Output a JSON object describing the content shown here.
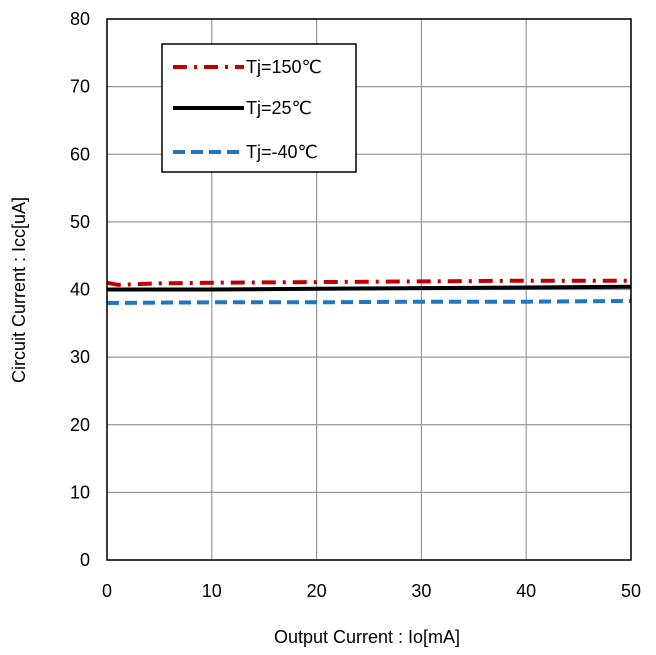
{
  "chart_data": {
    "type": "line",
    "title": "",
    "xlabel": "Output Current : Io[mA]",
    "ylabel": "Circuit Current : Icc[uA]",
    "xlim": [
      0,
      50
    ],
    "ylim": [
      0,
      80
    ],
    "xticks": [
      0,
      10,
      20,
      30,
      40,
      50
    ],
    "yticks": [
      0,
      10,
      20,
      30,
      40,
      50,
      60,
      70,
      80
    ],
    "x_tick_labels": [
      "0",
      "10",
      "20",
      "30",
      "40",
      "50"
    ],
    "y_tick_labels": [
      "0",
      "10",
      "20",
      "30",
      "40",
      "50",
      "60",
      "70",
      "80"
    ],
    "grid": true,
    "legend_position": "top-left",
    "series": [
      {
        "name": "Tj=150℃",
        "color": "#c00000",
        "style": "dash-dot",
        "x": [
          0,
          1,
          5,
          10,
          20,
          30,
          40,
          50
        ],
        "y": [
          41.0,
          40.7,
          40.9,
          41.0,
          41.1,
          41.2,
          41.3,
          41.3
        ]
      },
      {
        "name": "Tj=25℃",
        "color": "#000000",
        "style": "solid",
        "x": [
          0,
          10,
          20,
          30,
          40,
          50
        ],
        "y": [
          40.0,
          40.0,
          40.1,
          40.2,
          40.3,
          40.4
        ]
      },
      {
        "name": "Tj=-40℃",
        "color": "#1f77c4",
        "style": "dashed",
        "x": [
          0,
          10,
          20,
          30,
          40,
          50
        ],
        "y": [
          38.0,
          38.1,
          38.1,
          38.2,
          38.2,
          38.3
        ]
      }
    ]
  }
}
